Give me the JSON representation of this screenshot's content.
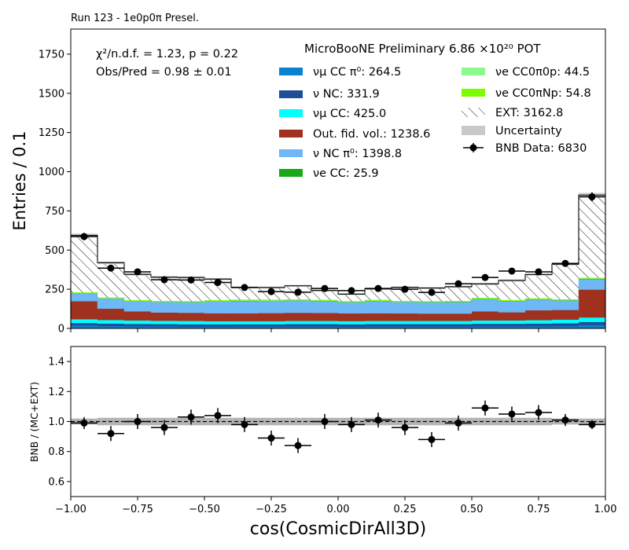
{
  "header": {
    "run_label": "Run 123 - 1e0p0π Presel."
  },
  "chart_data": [
    {
      "type": "bar",
      "panel": "main",
      "title": "MicroBooNE Preliminary 6.86 ×10²⁰ POT",
      "ylabel": "Entries / 0.1",
      "xlim": [
        -1.0,
        1.0
      ],
      "ylim": [
        0,
        1910
      ],
      "y_ticks": [
        0,
        250,
        500,
        750,
        1000,
        1250,
        1500,
        1750
      ],
      "bin_edges": [
        -1.0,
        -0.9,
        -0.8,
        -0.7,
        -0.6,
        -0.5,
        -0.4,
        -0.3,
        -0.2,
        -0.1,
        0.0,
        0.1,
        0.2,
        0.3,
        0.4,
        0.5,
        0.6,
        0.7,
        0.8,
        0.9,
        1.0
      ],
      "stat_text": [
        "χ²/n.d.f. = 1.23, p = 0.22",
        "Obs/Pred = 0.98 ± 0.01"
      ],
      "stack": [
        {
          "name": "νμ CC π⁰: 264.5",
          "color": "#0b82d0",
          "values": [
            20,
            15,
            14,
            13,
            12,
            12,
            12,
            12,
            12,
            12,
            11,
            12,
            12,
            12,
            12,
            13,
            13,
            14,
            15,
            22
          ]
        },
        {
          "name": "ν NC: 331.9",
          "color": "#1e4e98",
          "values": [
            15,
            16,
            15,
            15,
            15,
            14,
            15,
            15,
            16,
            16,
            16,
            16,
            16,
            16,
            16,
            17,
            17,
            17,
            18,
            20
          ]
        },
        {
          "name": "νμ CC: 425.0",
          "color": "#00ffff",
          "values": [
            24,
            23,
            22,
            21,
            21,
            20,
            19,
            19,
            20,
            20,
            20,
            20,
            20,
            20,
            20,
            21,
            21,
            22,
            23,
            28
          ]
        },
        {
          "name": "Out. fid. vol.: 1238.6",
          "color": "#a0311f",
          "values": [
            115,
            72,
            58,
            53,
            52,
            51,
            51,
            52,
            52,
            51,
            49,
            49,
            48,
            47,
            47,
            58,
            52,
            63,
            62,
            178
          ]
        },
        {
          "name": "ν NC π⁰: 1398.8",
          "color": "#6fb7f5",
          "values": [
            50,
            65,
            65,
            66,
            67,
            75,
            78,
            78,
            78,
            76,
            71,
            78,
            72,
            72,
            72,
            77,
            69,
            68,
            60,
            67
          ]
        },
        {
          "name": "νe CC: 25.9",
          "color": "#19a819",
          "values": [
            1,
            1,
            1,
            1,
            1,
            1,
            2,
            1,
            1,
            1,
            1,
            1,
            1,
            1,
            2,
            2,
            2,
            2,
            2,
            2
          ]
        },
        {
          "name": "νe CC0π0p: 44.5",
          "color": "#8dfa8d",
          "values": [
            2,
            2,
            2,
            2,
            2,
            2,
            3,
            3,
            2,
            2,
            2,
            2,
            2,
            2,
            2,
            3,
            3,
            2,
            2,
            2
          ]
        },
        {
          "name": "νe CC0πNp: 54.8",
          "color": "#7cfc00",
          "values": [
            2,
            2,
            2,
            3,
            3,
            4,
            3,
            3,
            3,
            3,
            3,
            3,
            3,
            3,
            3,
            3,
            3,
            3,
            3,
            3
          ]
        },
        {
          "name": "EXT: 3162.8",
          "color": "#ffffff",
          "hatch": true,
          "values": [
            365,
            223,
            166,
            153,
            152,
            136,
            79,
            78,
            88,
            61,
            46,
            71,
            88,
            85,
            92,
            90,
            126,
            153,
            225,
            529
          ]
        }
      ],
      "uncertainty": {
        "name": "Uncertainty",
        "color": "#c9c9c9",
        "values": [
          12,
          9,
          7,
          7,
          7,
          7,
          6,
          6,
          6,
          6,
          6,
          6,
          6,
          6,
          6,
          7,
          7,
          7,
          8,
          14
        ]
      },
      "data": {
        "name": "BNB Data: 6830",
        "x": [
          -0.95,
          -0.85,
          -0.75,
          -0.65,
          -0.55,
          -0.45,
          -0.35,
          -0.25,
          -0.15,
          -0.05,
          0.05,
          0.15,
          0.25,
          0.35,
          0.45,
          0.55,
          0.65,
          0.75,
          0.85,
          0.95
        ],
        "y": [
          586,
          385,
          361,
          311,
          309,
          293,
          261,
          235,
          231,
          255,
          241,
          255,
          250,
          230,
          285,
          325,
          366,
          361,
          415,
          840
        ],
        "yerr": [
          24,
          20,
          19,
          18,
          18,
          17,
          16,
          15,
          15,
          16,
          16,
          16,
          16,
          15,
          17,
          18,
          19,
          19,
          20,
          29
        ]
      }
    },
    {
      "type": "scatter",
      "panel": "ratio",
      "xlabel": "cos(CosmicDirAll3D)",
      "ylabel": "BNB / (MC+EXT)",
      "xlim": [
        -1.0,
        1.0
      ],
      "ylim": [
        0.5,
        1.5
      ],
      "x_ticks": [
        "−1.00",
        "−0.75",
        "−0.50",
        "−0.25",
        "0.00",
        "0.25",
        "0.50",
        "0.75",
        "1.00"
      ],
      "x_tick_values": [
        -1.0,
        -0.75,
        -0.5,
        -0.25,
        0.0,
        0.25,
        0.5,
        0.75,
        1.0
      ],
      "y_ticks": [
        0.6,
        0.8,
        1.0,
        1.2,
        1.4
      ],
      "reference_line": 1.0,
      "ratio": {
        "x": [
          -0.95,
          -0.85,
          -0.75,
          -0.65,
          -0.55,
          -0.45,
          -0.35,
          -0.25,
          -0.15,
          -0.05,
          0.05,
          0.15,
          0.25,
          0.35,
          0.45,
          0.55,
          0.65,
          0.75,
          0.85,
          0.95
        ],
        "y": [
          0.99,
          0.92,
          1.0,
          0.96,
          1.03,
          1.04,
          0.98,
          0.89,
          0.84,
          1.0,
          0.98,
          1.01,
          0.96,
          0.88,
          0.99,
          1.09,
          1.05,
          1.06,
          1.01,
          0.98
        ],
        "yerr": [
          0.04,
          0.05,
          0.05,
          0.05,
          0.05,
          0.05,
          0.05,
          0.05,
          0.05,
          0.05,
          0.05,
          0.05,
          0.05,
          0.05,
          0.05,
          0.05,
          0.05,
          0.05,
          0.04,
          0.03
        ]
      },
      "ratio_band": [
        0.02,
        0.025,
        0.025,
        0.025,
        0.025,
        0.025,
        0.025,
        0.025,
        0.025,
        0.025,
        0.025,
        0.025,
        0.025,
        0.025,
        0.025,
        0.025,
        0.025,
        0.025,
        0.02,
        0.02
      ]
    }
  ]
}
